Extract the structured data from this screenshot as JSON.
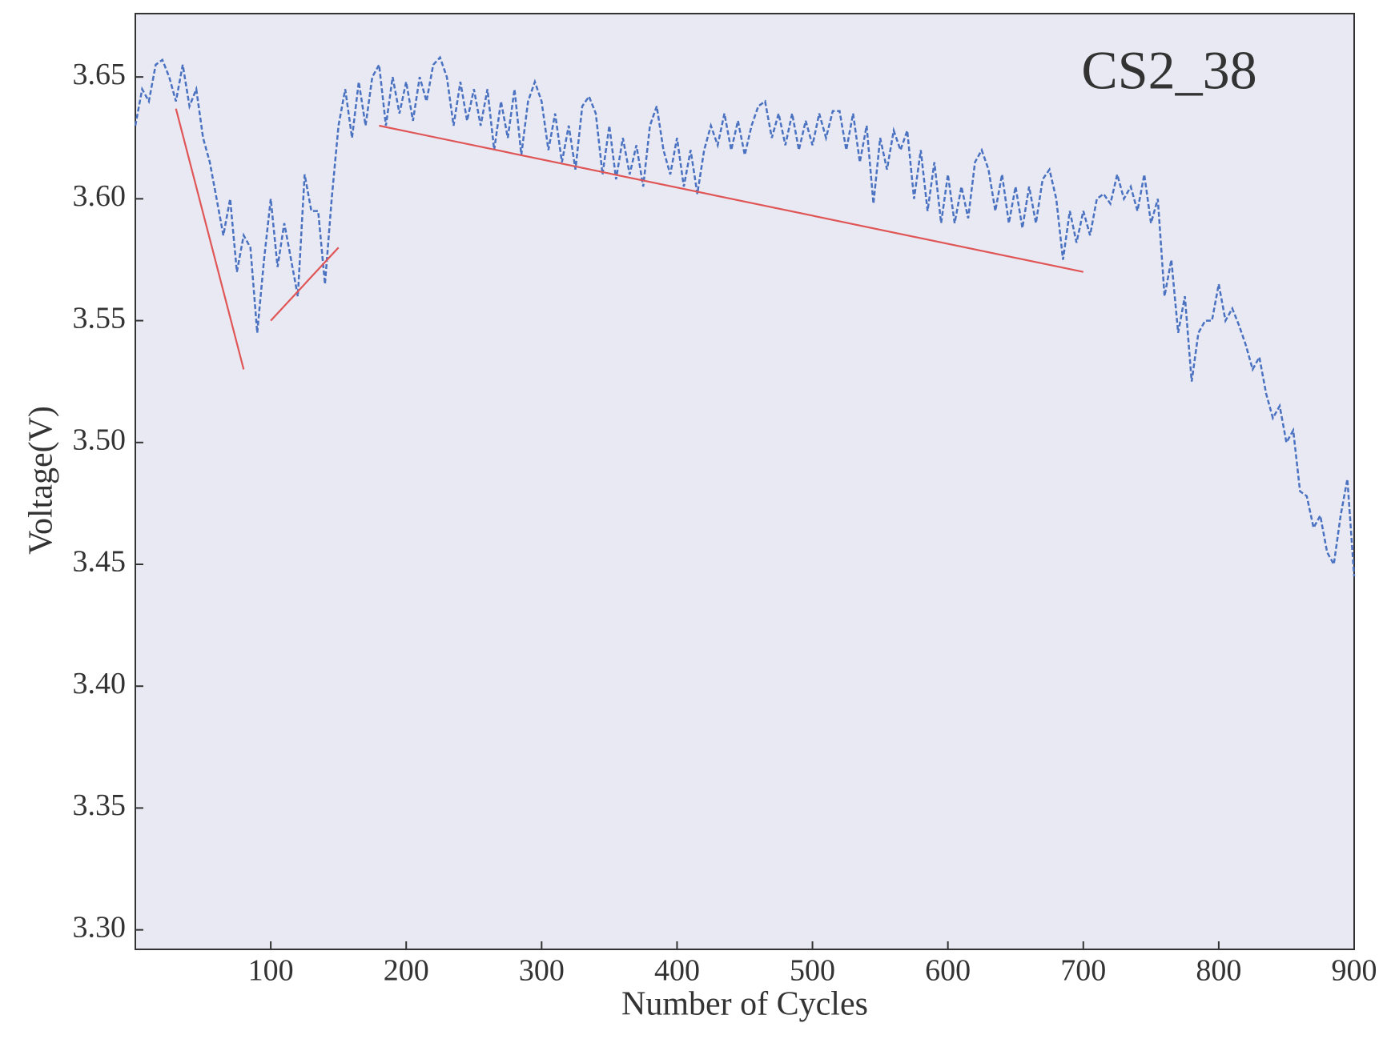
{
  "chart_data": {
    "type": "line",
    "annotation": "CS2_38",
    "xlabel": "Number of Cycles",
    "ylabel": "Voltage(V)",
    "xlim": [
      0,
      900
    ],
    "ylim": [
      3.292,
      3.676
    ],
    "xticks": [
      100,
      200,
      300,
      400,
      500,
      600,
      700,
      800,
      900
    ],
    "yticks": [
      {
        "value": 3.3,
        "label": "3.30"
      },
      3.35,
      {
        "value": 3.4,
        "label": "3.40"
      },
      3.45,
      {
        "value": 3.5,
        "label": "3.50"
      },
      3.55,
      {
        "value": 3.6,
        "label": "3.60"
      },
      3.65
    ],
    "background": "#e9e9f4",
    "series": [
      {
        "color": "#4a72c0",
        "linestyle": "dashed",
        "x": [
          0,
          5,
          10,
          15,
          20,
          25,
          30,
          35,
          40,
          45,
          50,
          55,
          60,
          65,
          70,
          75,
          80,
          85,
          90,
          95,
          100,
          105,
          110,
          115,
          120,
          125,
          130,
          135,
          140,
          145,
          150,
          155,
          160,
          165,
          170,
          175,
          180,
          185,
          190,
          195,
          200,
          205,
          210,
          215,
          220,
          225,
          230,
          235,
          240,
          245,
          250,
          255,
          260,
          265,
          270,
          275,
          280,
          285,
          290,
          295,
          300,
          305,
          310,
          315,
          320,
          325,
          330,
          335,
          340,
          345,
          350,
          355,
          360,
          365,
          370,
          375,
          380,
          385,
          390,
          395,
          400,
          405,
          410,
          415,
          420,
          425,
          430,
          435,
          440,
          445,
          450,
          455,
          460,
          465,
          470,
          475,
          480,
          485,
          490,
          495,
          500,
          505,
          510,
          515,
          520,
          525,
          530,
          535,
          540,
          545,
          550,
          555,
          560,
          565,
          570,
          575,
          580,
          585,
          590,
          595,
          600,
          605,
          610,
          615,
          620,
          625,
          630,
          635,
          640,
          645,
          650,
          655,
          660,
          665,
          670,
          675,
          680,
          685,
          690,
          695,
          700,
          705,
          710,
          715,
          720,
          725,
          730,
          735,
          740,
          745,
          750,
          755,
          760,
          765,
          770,
          775,
          780,
          785,
          790,
          795,
          800,
          805,
          810,
          815,
          820,
          825,
          830,
          835,
          840,
          845,
          850,
          855,
          860,
          865,
          870,
          875,
          880,
          885,
          890,
          895,
          900
        ],
        "values": [
          3.63,
          3.645,
          3.64,
          3.655,
          3.657,
          3.65,
          3.64,
          3.655,
          3.638,
          3.645,
          3.625,
          3.615,
          3.6,
          3.585,
          3.6,
          3.57,
          3.585,
          3.58,
          3.545,
          3.575,
          3.6,
          3.572,
          3.59,
          3.575,
          3.56,
          3.61,
          3.595,
          3.595,
          3.565,
          3.6,
          3.63,
          3.645,
          3.625,
          3.648,
          3.63,
          3.65,
          3.655,
          3.63,
          3.65,
          3.635,
          3.648,
          3.632,
          3.65,
          3.64,
          3.655,
          3.658,
          3.65,
          3.63,
          3.648,
          3.632,
          3.645,
          3.63,
          3.645,
          3.62,
          3.64,
          3.625,
          3.645,
          3.618,
          3.64,
          3.648,
          3.64,
          3.62,
          3.635,
          3.615,
          3.63,
          3.612,
          3.638,
          3.642,
          3.635,
          3.61,
          3.63,
          3.608,
          3.625,
          3.61,
          3.622,
          3.605,
          3.63,
          3.638,
          3.62,
          3.61,
          3.625,
          3.605,
          3.62,
          3.602,
          3.62,
          3.63,
          3.622,
          3.635,
          3.62,
          3.632,
          3.618,
          3.63,
          3.638,
          3.64,
          3.625,
          3.635,
          3.622,
          3.635,
          3.62,
          3.632,
          3.622,
          3.635,
          3.625,
          3.636,
          3.636,
          3.62,
          3.635,
          3.615,
          3.63,
          3.598,
          3.625,
          3.612,
          3.628,
          3.62,
          3.628,
          3.6,
          3.62,
          3.595,
          3.615,
          3.59,
          3.61,
          3.59,
          3.605,
          3.592,
          3.615,
          3.62,
          3.612,
          3.595,
          3.61,
          3.59,
          3.605,
          3.588,
          3.605,
          3.59,
          3.608,
          3.612,
          3.6,
          3.575,
          3.595,
          3.582,
          3.595,
          3.585,
          3.6,
          3.602,
          3.598,
          3.61,
          3.6,
          3.605,
          3.595,
          3.61,
          3.59,
          3.6,
          3.56,
          3.575,
          3.545,
          3.56,
          3.525,
          3.545,
          3.55,
          3.55,
          3.565,
          3.55,
          3.555,
          3.548,
          3.54,
          3.53,
          3.535,
          3.52,
          3.51,
          3.515,
          3.5,
          3.505,
          3.48,
          3.478,
          3.465,
          3.47,
          3.455,
          3.45,
          3.47,
          3.485,
          3.445
        ]
      },
      {
        "color": "#e05555",
        "linestyle": "solid",
        "x": [
          30,
          80
        ],
        "values": [
          3.637,
          3.53
        ]
      },
      {
        "color": "#e05555",
        "linestyle": "solid",
        "x": [
          100,
          150
        ],
        "values": [
          3.55,
          3.58
        ]
      },
      {
        "color": "#e05555",
        "linestyle": "solid",
        "x": [
          180,
          700
        ],
        "values": [
          3.63,
          3.57
        ]
      }
    ]
  }
}
